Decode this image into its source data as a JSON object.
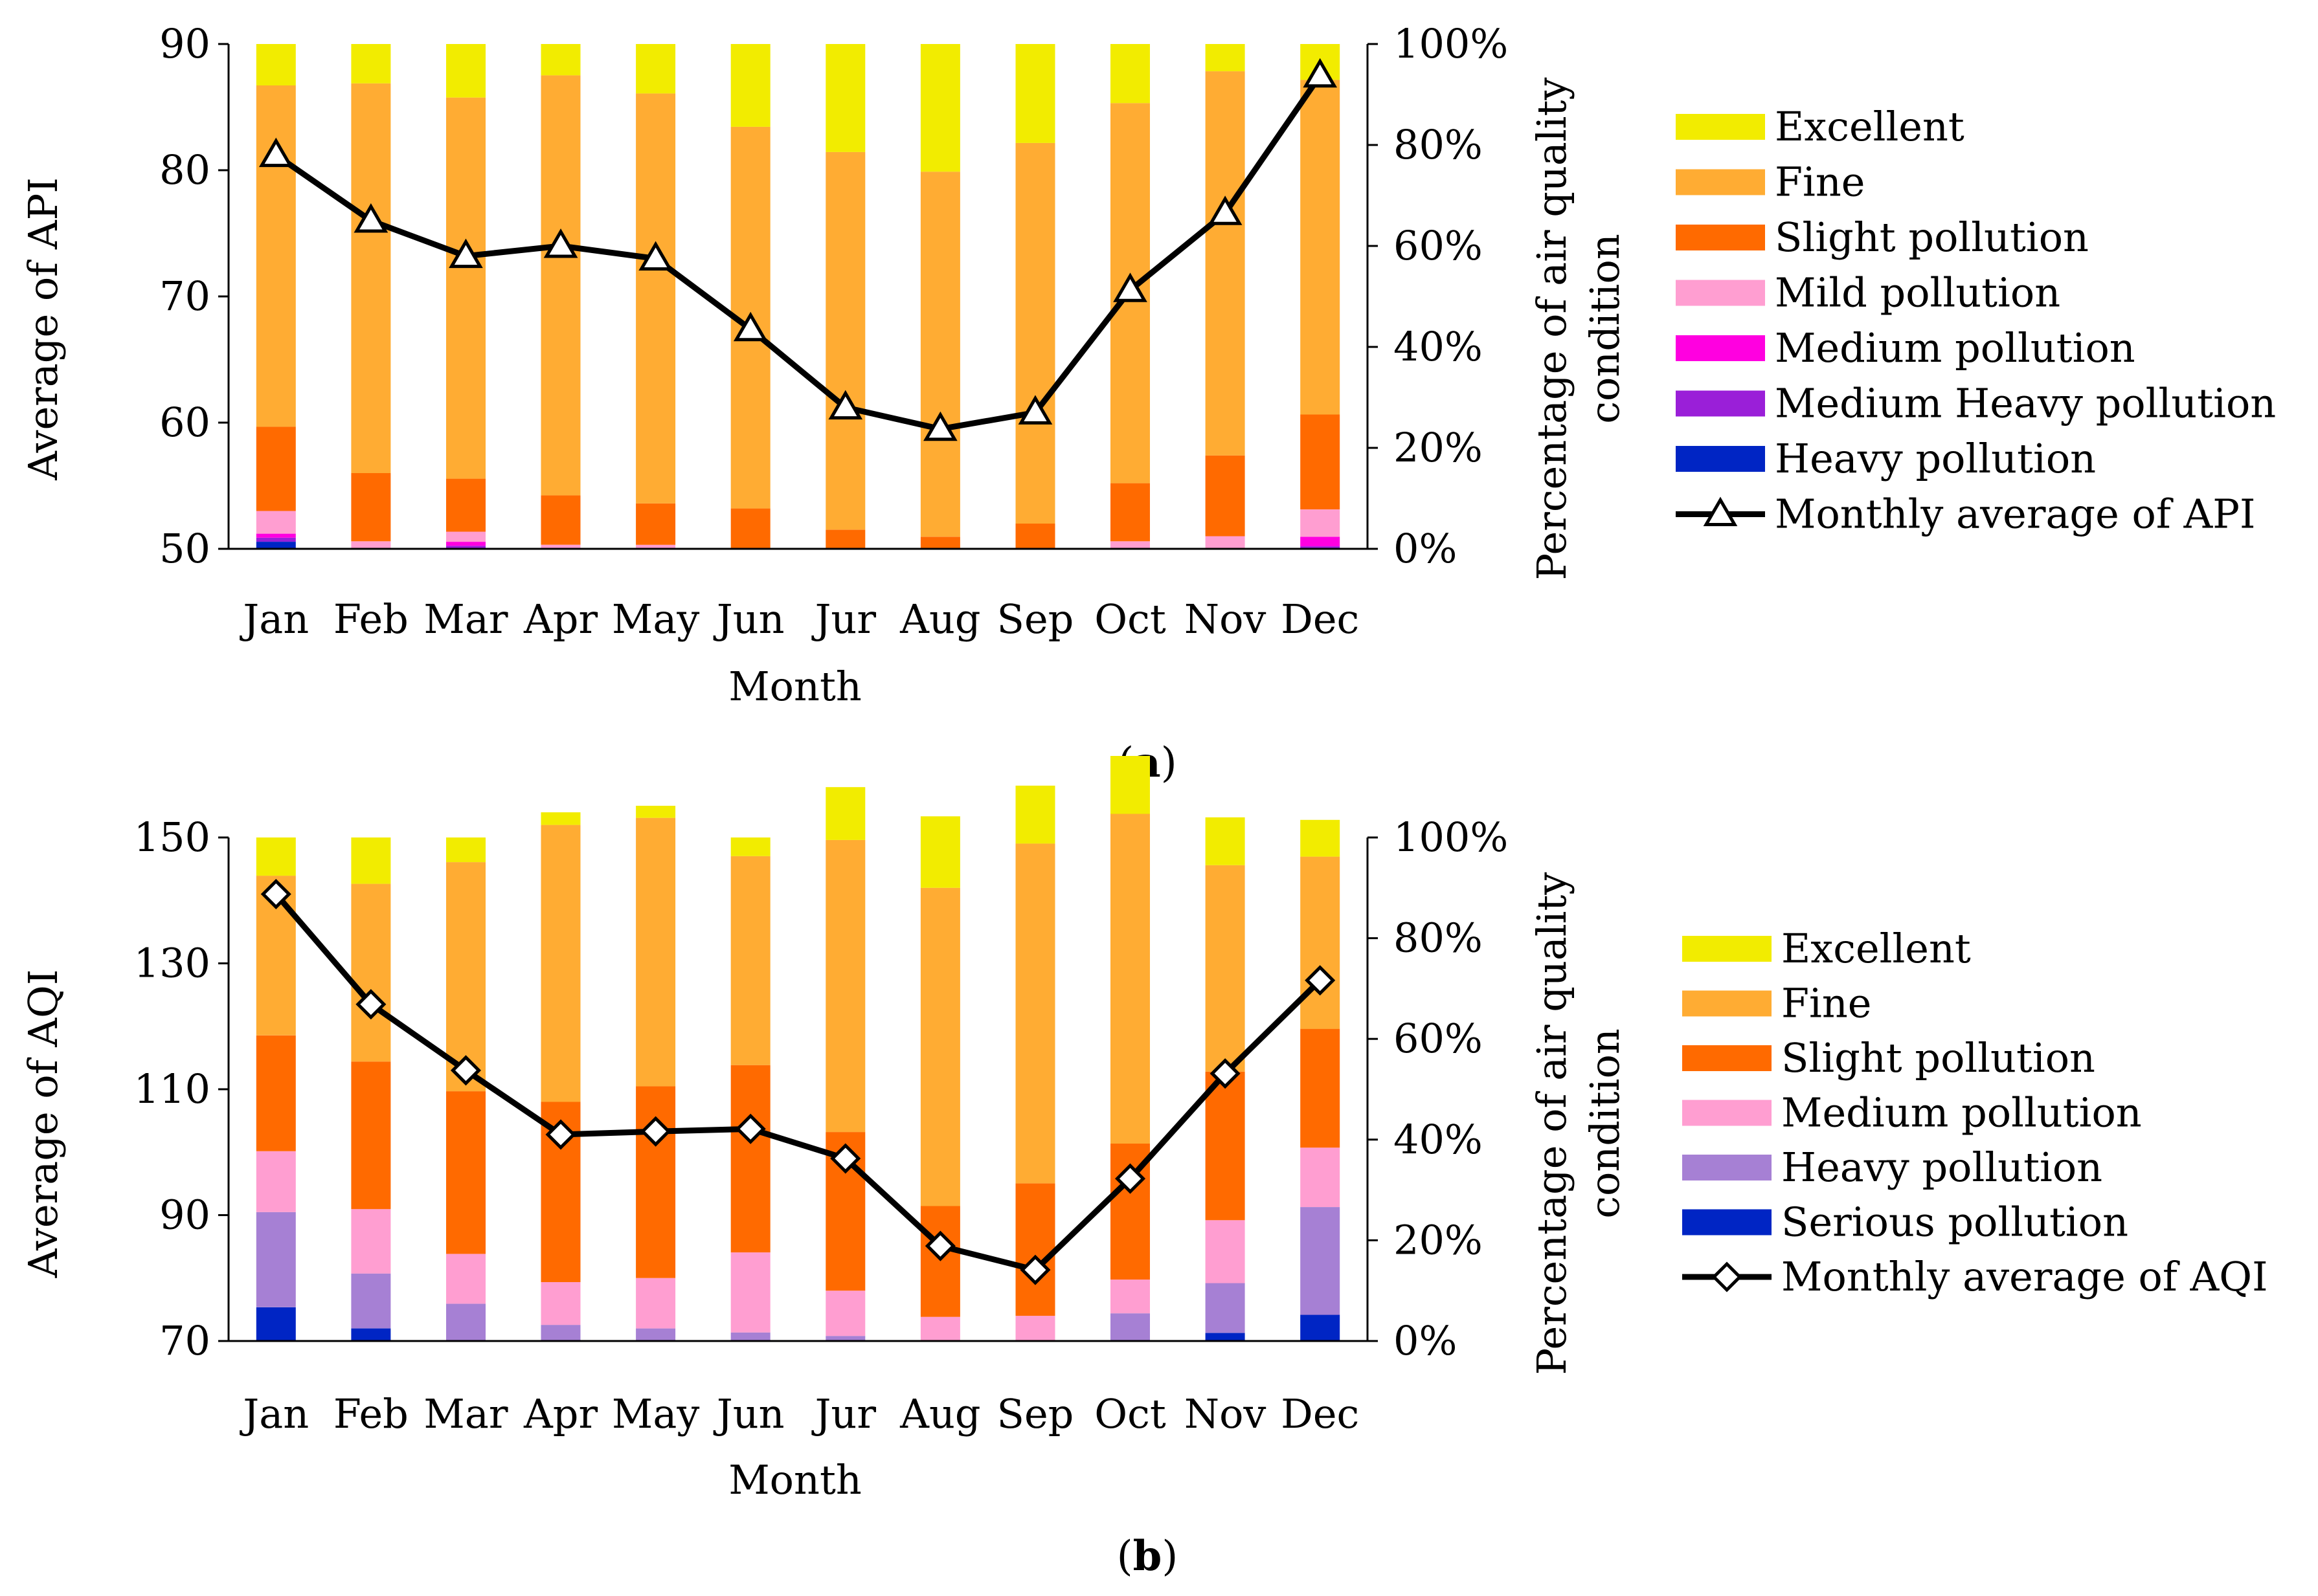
{
  "colors": {
    "Excellent": "#f2ec00",
    "Fine": "#ffac33",
    "Slight pollution": "#ff6a00",
    "Mild pollution": "#ff9ed1",
    "Medium pollution A": "#ff00e0",
    "Medium Heavy pollution": "#9a1fd8",
    "Heavy pollution A": "#0025c4",
    "Medium pollution B": "#ff9ed1",
    "Heavy pollution B": "#a680d4",
    "Serious pollution": "#0025c4",
    "line": "#000000"
  },
  "chart_data": [
    {
      "type": "bar",
      "subtype": "stacked-100-with-line",
      "panel_label": {
        "open": "(",
        "letter": "a",
        "close": ")"
      },
      "xlabel": "Month",
      "ylabel": "Average of API",
      "y2label_line1": "Percentage of air quality",
      "y2label_line2": "condition",
      "ylim": [
        50,
        90
      ],
      "yticks": [
        "50",
        "60",
        "70",
        "80",
        "90"
      ],
      "yticks_values": [
        50,
        60,
        70,
        80,
        90
      ],
      "y2lim": [
        0,
        100
      ],
      "y2ticks": [
        "0%",
        "20%",
        "40%",
        "60%",
        "80%",
        "100%"
      ],
      "y2ticks_values": [
        0,
        20,
        40,
        60,
        80,
        100
      ],
      "categories": [
        "Jan",
        "Feb",
        "Mar",
        "Apr",
        "May",
        "Jun",
        "Jur",
        "Aug",
        "Sep",
        "Oct",
        "Nov",
        "Dec"
      ],
      "series": [
        {
          "name": "Heavy pollution",
          "color_key": "Heavy pollution A",
          "values": [
            1.4,
            0,
            0,
            0,
            0,
            0,
            0,
            0,
            0,
            0,
            0,
            0
          ]
        },
        {
          "name": "Medium Heavy pollution",
          "color_key": "Medium Heavy pollution",
          "values": [
            0.8,
            0,
            0.6,
            0,
            0,
            0,
            0,
            0,
            0,
            0,
            0,
            0.5
          ]
        },
        {
          "name": "Medium pollution",
          "color_key": "Medium pollution A",
          "values": [
            0.8,
            0,
            0.8,
            0,
            0,
            0,
            0,
            0,
            0,
            0,
            0,
            1.9
          ]
        },
        {
          "name": "Mild pollution",
          "color_key": "Mild pollution",
          "values": [
            4.5,
            1.5,
            2.0,
            0.8,
            0.8,
            0,
            0,
            0,
            0,
            1.5,
            2.5,
            5.4
          ]
        },
        {
          "name": "Slight pollution",
          "color_key": "Slight pollution",
          "values": [
            16.7,
            13.5,
            10.5,
            9.8,
            8.2,
            8.0,
            3.8,
            2.4,
            5.0,
            11.5,
            16.0,
            18.8
          ]
        },
        {
          "name": "Fine",
          "color_key": "Fine",
          "values": [
            67.6,
            77.2,
            75.5,
            83.2,
            81.2,
            75.6,
            74.8,
            72.3,
            75.4,
            75.3,
            76.1,
            66.3
          ]
        },
        {
          "name": "Excellent",
          "color_key": "Excellent",
          "values": [
            8.2,
            7.8,
            10.6,
            6.2,
            9.8,
            16.4,
            21.4,
            25.3,
            19.6,
            11.7,
            5.4,
            7.1
          ]
        }
      ],
      "legend": [
        "Excellent",
        "Fine",
        "Slight pollution",
        "Mild pollution",
        "Medium pollution",
        "Medium Heavy pollution",
        "Heavy pollution",
        "Monthly average of API"
      ],
      "line_series": {
        "name": "Monthly average of API",
        "marker": "triangle",
        "values": [
          81.2,
          76.0,
          73.2,
          74.0,
          73.0,
          67.4,
          61.2,
          59.5,
          60.8,
          70.5,
          76.6,
          87.5
        ]
      }
    },
    {
      "type": "bar",
      "subtype": "stacked-100-with-line",
      "panel_label": {
        "open": "(",
        "letter": "b",
        "close": ")"
      },
      "xlabel": "Month",
      "ylabel": "Average of AQI",
      "y2label_line1": "Percentage of air quality",
      "y2label_line2": "condition",
      "ylim": [
        70,
        150
      ],
      "yticks": [
        "70",
        "90",
        "110",
        "130",
        "150"
      ],
      "yticks_values": [
        70,
        90,
        110,
        130,
        150
      ],
      "y2lim": [
        0,
        100
      ],
      "y2ticks": [
        "0%",
        "20%",
        "40%",
        "60%",
        "80%",
        "100%"
      ],
      "y2ticks_values": [
        0,
        20,
        40,
        60,
        80,
        100
      ],
      "categories": [
        "Jan",
        "Feb",
        "Mar",
        "Apr",
        "May",
        "Jun",
        "Jur",
        "Aug",
        "Sep",
        "Oct",
        "Nov",
        "Dec"
      ],
      "series": [
        {
          "name": "Serious pollution",
          "color_key": "Serious pollution",
          "values": [
            6.7,
            2.5,
            0,
            0,
            0,
            0,
            0,
            0,
            0,
            0,
            1.6,
            5.2
          ]
        },
        {
          "name": "Heavy pollution",
          "color_key": "Heavy pollution B",
          "values": [
            18.9,
            10.9,
            7.4,
            3.2,
            2.5,
            1.7,
            1.0,
            0,
            0,
            5.5,
            9.9,
            21.4
          ]
        },
        {
          "name": "Medium pollution",
          "color_key": "Medium pollution B",
          "values": [
            12.1,
            12.8,
            9.9,
            8.5,
            10.0,
            15.9,
            9.0,
            4.8,
            5.0,
            6.7,
            12.5,
            11.8
          ]
        },
        {
          "name": "Slight pollution",
          "color_key": "Slight pollution",
          "values": [
            23.0,
            29.3,
            32.3,
            35.8,
            38.1,
            37.2,
            31.5,
            22.0,
            26.3,
            27.0,
            29.5,
            23.6
          ]
        },
        {
          "name": "Fine",
          "color_key": "Fine",
          "values": [
            31.7,
            35.3,
            45.5,
            55.0,
            53.3,
            41.5,
            58.0,
            63.2,
            67.5,
            65.5,
            41.0,
            34.2
          ]
        },
        {
          "name": "Excellent",
          "color_key": "Excellent",
          "values": [
            7.6,
            9.2,
            4.9,
            2.5,
            2.4,
            3.7,
            10.5,
            14.2,
            11.5,
            11.5,
            9.5,
            7.3
          ]
        }
      ],
      "legend": [
        "Excellent",
        "Fine",
        "Slight pollution",
        "Medium pollution",
        "Heavy pollution",
        "Serious pollution",
        "Monthly average of AQI"
      ],
      "line_series": {
        "name": "Monthly average of AQI",
        "marker": "diamond",
        "values": [
          141.0,
          123.5,
          113.0,
          102.8,
          103.3,
          103.7,
          99.0,
          85.1,
          81.3,
          95.8,
          112.5,
          127.3
        ]
      }
    }
  ]
}
